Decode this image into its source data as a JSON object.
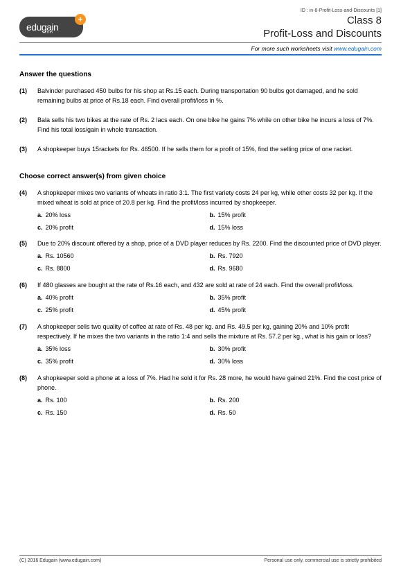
{
  "doc_id": "ID : in-8-Profit-Loss-and-Discounts [1]",
  "logo": {
    "text": "edugain",
    "sub": ".com",
    "plus": "+"
  },
  "header": {
    "class_label": "Class 8",
    "topic": "Profit-Loss and Discounts"
  },
  "sublink": {
    "prefix": "For more such worksheets visit ",
    "link_text": "www.edugain.com"
  },
  "section1_heading": "Answer the questions",
  "section2_heading": "Choose correct answer(s) from given choice",
  "questions_plain": [
    {
      "num": "(1)",
      "text": "Balvinder purchased 450 bulbs for his shop at Rs.15 each. During transportation 90 bulbs got damaged, and he sold remaining bulbs at price of Rs.18 each. Find overall profit/loss in %."
    },
    {
      "num": "(2)",
      "text": "Bala sells his two bikes at the rate of Rs. 2 lacs each. On one bike he gains 7% while on other bike he incurs a loss of 7%. Find his total loss/gain in whole transaction."
    },
    {
      "num": "(3)",
      "text": "A shopkeeper buys 15rackets for Rs. 46500. If he sells them for a profit of 15%, find the selling price of one racket."
    }
  ],
  "questions_mcq": [
    {
      "num": "(4)",
      "text": "A shopkeeper mixes two variants of wheats in ratio 3:1. The first variety costs 24 per kg, while other costs 32 per kg. If the mixed wheat is sold at price of 20.8 per kg. Find the profit/loss incurred by shopkeeper.",
      "a": "20% loss",
      "b": "15% profit",
      "c": "20% profit",
      "d": "15% loss"
    },
    {
      "num": "(5)",
      "text": "Due to 20% discount offered by a shop, price of a DVD player reduces by Rs. 2200. Find the discounted price of DVD player.",
      "a": "Rs. 10560",
      "b": "Rs. 7920",
      "c": "Rs. 8800",
      "d": "Rs. 9680"
    },
    {
      "num": "(6)",
      "text": "If 480 glasses are bought at the rate of Rs.16 each, and 432 are sold at rate of 24 each. Find the overall profit/loss.",
      "a": "40% profit",
      "b": "35% profit",
      "c": "25% profit",
      "d": "45% profit"
    },
    {
      "num": "(7)",
      "text": "A shopkeeper sells two quality of coffee at rate of Rs. 48 per kg. and Rs. 49.5 per kg, gaining 20% and 10% profit respectively. If he mixes the two variants in the ratio 1:4 and sells the mixture at Rs. 57.2 per kg., what is his gain or loss?",
      "a": "35% loss",
      "b": "30% profit",
      "c": "35% profit",
      "d": "30% loss"
    },
    {
      "num": "(8)",
      "text": "A shopkeeper sold a phone at a loss of 7%. Had he sold it for Rs. 28 more, he would have gained 21%. Find the cost price of phone.",
      "a": "Rs. 100",
      "b": "Rs. 200",
      "c": "Rs. 150",
      "d": "Rs. 50"
    }
  ],
  "footer": {
    "left": "(C) 2016 Edugain (www.edugain.com)",
    "right": "Personal use only, commercial use is strictly prohibited"
  },
  "colors": {
    "hr_blue": "#1976d2",
    "logo_bg": "#444444",
    "logo_accent": "#f7931e",
    "link": "#0066cc"
  }
}
